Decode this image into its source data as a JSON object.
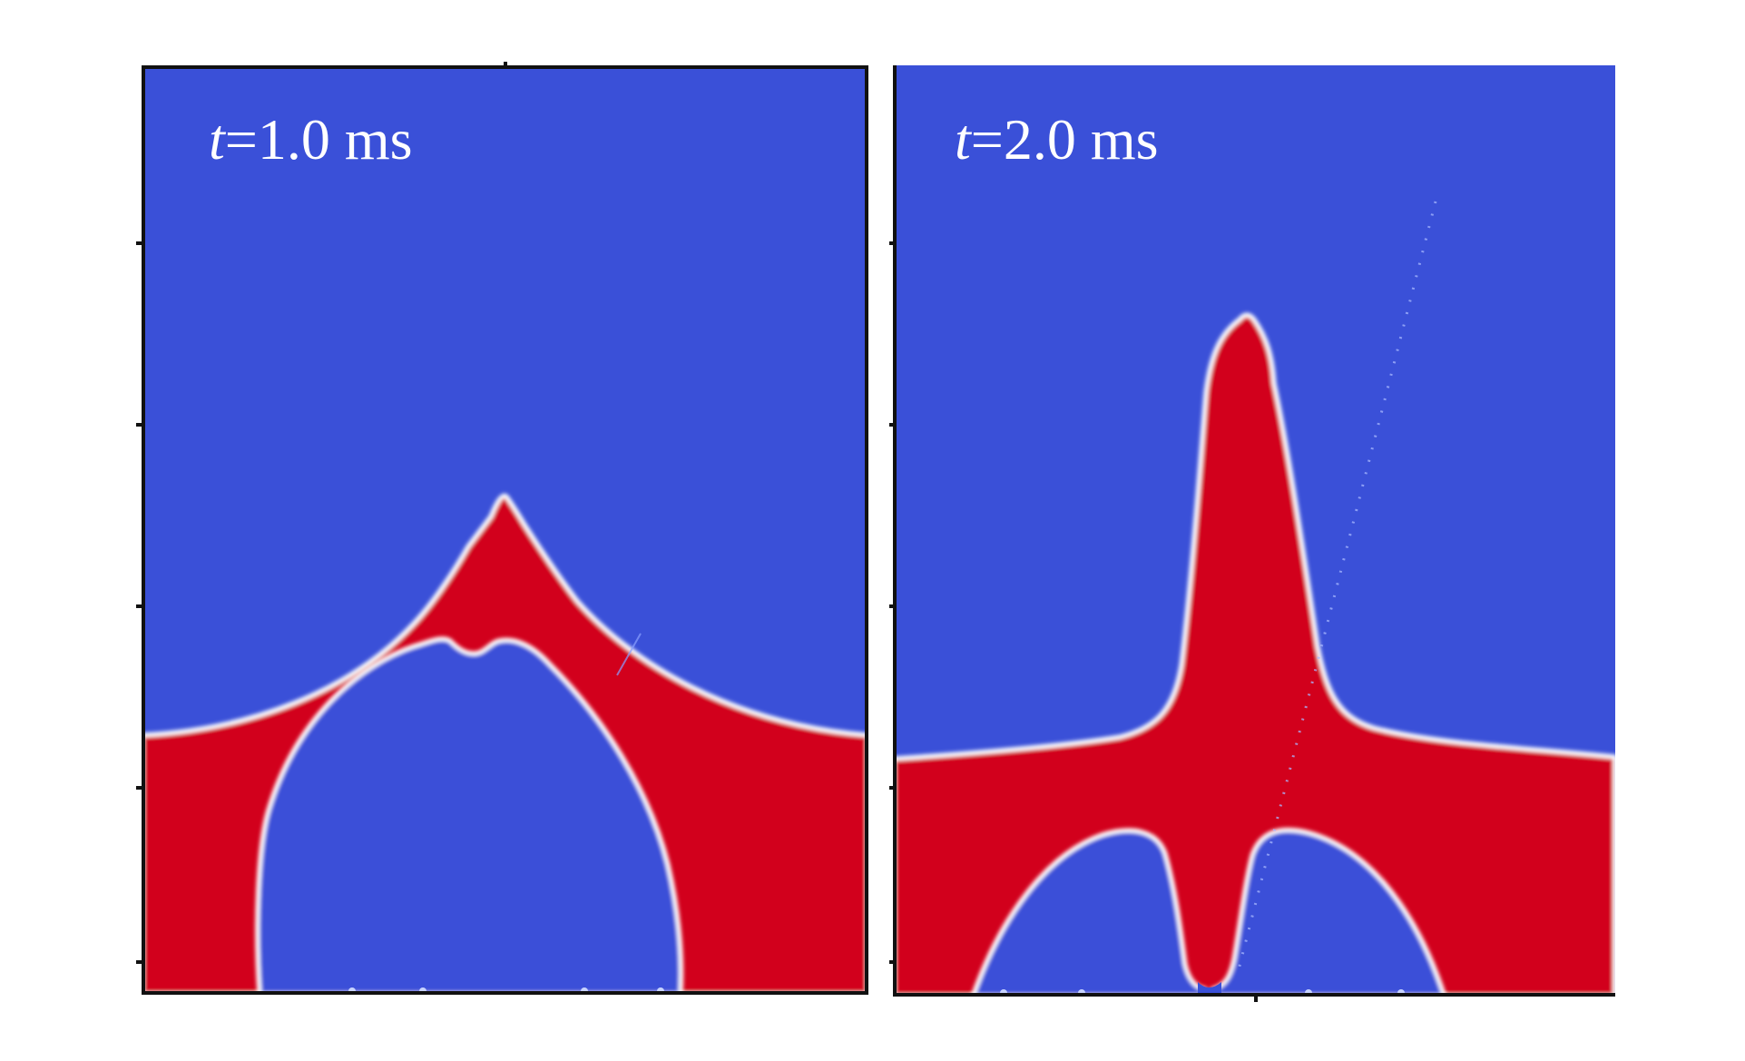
{
  "panels": [
    {
      "time_variable": "t",
      "time_value": "=1.0 ms"
    },
    {
      "time_variable": "t",
      "time_value": "=2.0 ms"
    }
  ],
  "colors": {
    "background_phase": "#3a50d8",
    "jet_phase": "#d2001a",
    "interface": "#ffffff",
    "axis": "#111111"
  }
}
